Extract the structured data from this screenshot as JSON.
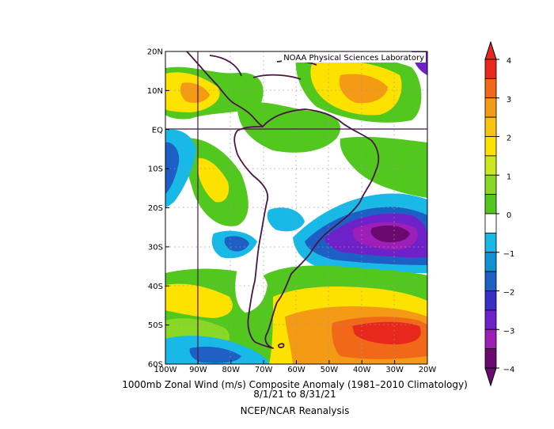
{
  "credit": "NOAA Physical Sciences Laboratory",
  "caption": {
    "line1": "1000mb Zonal Wind (m/s) Composite Anomaly (1981–2010 Climatology)",
    "line2": "8/1/21   to 8/31/21",
    "line3": "NCEP/NCAR Reanalysis"
  },
  "map": {
    "lon_ticks": [
      "100W",
      "90W",
      "80W",
      "70W",
      "60W",
      "50W",
      "40W",
      "30W",
      "20W"
    ],
    "lat_ticks": [
      "20N",
      "10N",
      "EQ",
      "10S",
      "20S",
      "30S",
      "40S",
      "50S",
      "60S"
    ],
    "lon_range": [
      -100,
      -20
    ],
    "lat_range": [
      -60,
      20
    ],
    "grid": "dotted",
    "reference_lines": [
      "90W",
      "EQ"
    ]
  },
  "colorbar": {
    "levels": [
      -4,
      -3.5,
      -3,
      -2.5,
      -2,
      -1.5,
      -1,
      -0.5,
      0.5,
      1,
      1.5,
      2,
      2.5,
      3,
      3.5,
      4
    ],
    "tick_labels": [
      "4",
      "3",
      "2",
      "1",
      "0",
      "−1",
      "−2",
      "−3",
      "−4"
    ],
    "colors_top_to_bottom": [
      "#e8281c",
      "#f06818",
      "#f59a14",
      "#f8c40e",
      "#fde200",
      "#cbe81e",
      "#8ad826",
      "#52c81f",
      "#ffffff",
      "#18b9e6",
      "#1190d2",
      "#1d5fc4",
      "#3a2fc4",
      "#6e21c8",
      "#9d1fb8",
      "#6a0a70"
    ],
    "position": "right"
  }
}
